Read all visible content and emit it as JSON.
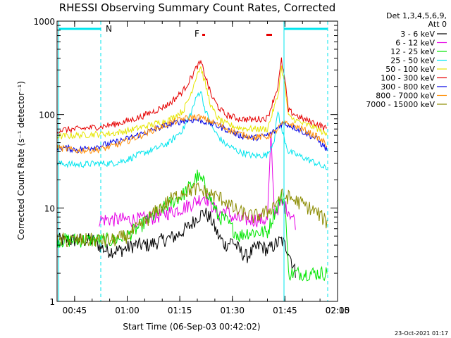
{
  "chart_data": {
    "type": "line",
    "title": "RHESSI Observing Summary Count Rates, Corrected",
    "xlabel": "Start Time (06-Sep-03 00:42:02)",
    "ylabel": "Corrected Count Rate (s⁻¹ detector⁻¹)",
    "footer": "23-Oct-2021 01:17",
    "yscale": "log",
    "ylim": [
      1,
      1000
    ],
    "xlim_minutes": [
      40,
      120
    ],
    "x_tick_labels": [
      "00:45",
      "01:00",
      "01:15",
      "01:30",
      "01:45",
      "02:00",
      "02:15"
    ],
    "y_tick_labels": [
      "1",
      "10",
      "100",
      "1000"
    ],
    "legend_header": [
      "Det 1,3,4,5,6,9,",
      "Att 0"
    ],
    "legend_placement": "right",
    "markers": [
      {
        "label": "N",
        "color": "#00e5ee"
      },
      {
        "label": "F",
        "color": "#e60000"
      }
    ],
    "series": [
      {
        "name": "3 - 6 keV",
        "color": "#000000",
        "x": [
          40,
          46,
          50,
          54,
          58,
          62,
          66,
          70,
          74,
          78,
          80,
          82,
          84,
          86,
          88,
          90,
          92,
          94,
          96,
          98,
          100,
          102,
          104,
          106,
          108
        ],
        "y": [
          4.5,
          4.5,
          4.5,
          3.5,
          3.5,
          4,
          4,
          4.5,
          5,
          6.5,
          8,
          9,
          7.5,
          5,
          4,
          4.5,
          3.5,
          3,
          3.5,
          4,
          3.5,
          4,
          4.5,
          3.5,
          2
        ]
      },
      {
        "name": "6 - 12 keV",
        "color": "#e600e6",
        "x": [
          52,
          56,
          60,
          64,
          68,
          72,
          76,
          80,
          82,
          84,
          86,
          88,
          90,
          92,
          94,
          96,
          98,
          100,
          101,
          102,
          104,
          106,
          108
        ],
        "y": [
          7.5,
          7.5,
          7.5,
          7.5,
          8,
          9,
          10,
          12,
          13.5,
          11,
          8.5,
          9.5,
          8,
          7.5,
          7.5,
          7.5,
          7.5,
          7.5,
          55,
          9,
          11,
          9.5,
          7
        ]
      },
      {
        "name": "12 - 25 keV",
        "color": "#00e600",
        "x": [
          40,
          46,
          52,
          56,
          60,
          64,
          68,
          72,
          76,
          78,
          80,
          82,
          84,
          86,
          88,
          90,
          92,
          94,
          96,
          98,
          100,
          102,
          104,
          105,
          106,
          112,
          117
        ],
        "y": [
          4.5,
          4.5,
          4.5,
          4.5,
          5,
          6.5,
          8.5,
          11,
          14,
          17,
          22,
          18,
          12,
          8,
          7.5,
          6,
          5,
          5.5,
          5.5,
          5.5,
          5.5,
          9,
          13,
          12,
          2,
          2,
          2
        ]
      },
      {
        "name": "25 - 50 keV",
        "color": "#00e5ee",
        "x": [
          40,
          46,
          52,
          56,
          60,
          64,
          68,
          72,
          76,
          78,
          80,
          81,
          82,
          84,
          86,
          88,
          92,
          96,
          100,
          102,
          103,
          104,
          106,
          110,
          114,
          117
        ],
        "y": [
          30,
          29,
          30,
          30,
          33,
          38,
          43,
          50,
          70,
          100,
          160,
          180,
          120,
          75,
          58,
          48,
          40,
          36,
          37,
          55,
          110,
          70,
          40,
          35,
          30,
          26
        ]
      },
      {
        "name": "50 - 100 keV",
        "color": "#e6e600",
        "x": [
          40,
          46,
          52,
          56,
          60,
          64,
          68,
          72,
          76,
          78,
          80,
          81,
          82,
          84,
          86,
          88,
          92,
          96,
          100,
          103,
          104,
          105,
          106,
          110,
          114,
          117
        ],
        "y": [
          58,
          60,
          62,
          63,
          67,
          73,
          80,
          88,
          110,
          160,
          280,
          320,
          230,
          120,
          90,
          80,
          72,
          70,
          70,
          160,
          320,
          200,
          95,
          80,
          72,
          60
        ]
      },
      {
        "name": "100 - 300 keV",
        "color": "#e60000",
        "x": [
          40,
          46,
          52,
          56,
          60,
          64,
          68,
          72,
          76,
          78,
          80,
          81,
          82,
          84,
          86,
          88,
          92,
          96,
          100,
          103,
          104,
          105,
          106,
          110,
          114,
          117
        ],
        "y": [
          68,
          70,
          74,
          78,
          85,
          95,
          110,
          130,
          180,
          240,
          330,
          360,
          280,
          160,
          120,
          100,
          90,
          88,
          92,
          200,
          380,
          230,
          110,
          90,
          80,
          70
        ]
      },
      {
        "name": "300 - 800 keV",
        "color": "#0000e6",
        "x": [
          40,
          46,
          52,
          56,
          60,
          64,
          68,
          72,
          76,
          80,
          84,
          88,
          92,
          96,
          100,
          102,
          104,
          106,
          110,
          114,
          117
        ],
        "y": [
          45,
          42,
          46,
          50,
          55,
          62,
          70,
          78,
          86,
          88,
          80,
          70,
          60,
          56,
          60,
          66,
          80,
          78,
          66,
          55,
          42
        ]
      },
      {
        "name": "800 - 7000 keV",
        "color": "#ff8c00",
        "x": [
          40,
          46,
          52,
          56,
          60,
          64,
          68,
          72,
          76,
          80,
          84,
          88,
          92,
          96,
          100,
          102,
          104,
          106,
          110,
          114,
          117
        ],
        "y": [
          44,
          41,
          42,
          46,
          52,
          60,
          70,
          80,
          90,
          95,
          84,
          72,
          62,
          57,
          58,
          64,
          78,
          80,
          70,
          58,
          48
        ]
      },
      {
        "name": "7000 - 15000 keV",
        "color": "#8b8b00",
        "x": [
          40,
          46,
          52,
          56,
          60,
          64,
          68,
          72,
          76,
          80,
          84,
          88,
          90,
          92,
          96,
          100,
          102,
          104,
          106,
          110,
          114,
          117
        ],
        "y": [
          4.5,
          4.5,
          4.5,
          4.5,
          5,
          6.5,
          9,
          12,
          15,
          16,
          14,
          12,
          10,
          9,
          8,
          9,
          11,
          13.5,
          13,
          11,
          9,
          7
        ]
      }
    ]
  }
}
